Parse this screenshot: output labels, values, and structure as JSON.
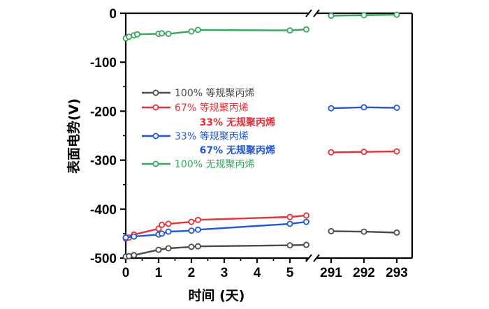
{
  "chart_data": {
    "type": "line",
    "xlabel": "时间 (天)",
    "ylabel": "表面电势(V)",
    "ylim": [
      -500,
      0
    ],
    "yticks": [
      0,
      -100,
      -200,
      -300,
      -400,
      -500
    ],
    "x_segments": [
      {
        "range": [
          0,
          5.6
        ],
        "ticks": [
          0,
          1,
          2,
          3,
          4,
          5
        ]
      },
      {
        "range": [
          290.7,
          293.2
        ],
        "ticks": [
          291,
          292,
          293
        ]
      }
    ],
    "axis_break": true,
    "legend_placement": "center-left",
    "series": [
      {
        "name": "100% 等规聚丙烯",
        "color": "#4a4a4a",
        "points": [
          [
            0,
            -497
          ],
          [
            0.1,
            -496
          ],
          [
            0.25,
            -494
          ],
          [
            1,
            -483
          ],
          [
            1.3,
            -480
          ],
          [
            2,
            -477
          ],
          [
            2.2,
            -476
          ],
          [
            5,
            -474
          ],
          [
            5.5,
            -473
          ],
          [
            291,
            -445
          ],
          [
            292,
            -446
          ],
          [
            293,
            -448
          ]
        ]
      },
      {
        "name": "67% 等规聚丙烯",
        "name_line2": "33% 无规聚丙烯",
        "color": "#e8303a",
        "points": [
          [
            0,
            -460
          ],
          [
            0.1,
            -458
          ],
          [
            0.25,
            -452
          ],
          [
            1,
            -440
          ],
          [
            1.1,
            -432
          ],
          [
            1.3,
            -430
          ],
          [
            2,
            -426
          ],
          [
            2.2,
            -422
          ],
          [
            5,
            -416
          ],
          [
            5.5,
            -413
          ],
          [
            291,
            -284
          ],
          [
            292,
            -283
          ],
          [
            293,
            -282
          ]
        ]
      },
      {
        "name": "33% 等规聚丙烯",
        "name_line2": "67% 无规聚丙烯",
        "color": "#2158d6",
        "points": [
          [
            0,
            -458
          ],
          [
            0.25,
            -456
          ],
          [
            1,
            -452
          ],
          [
            1.1,
            -450
          ],
          [
            1.3,
            -446
          ],
          [
            2,
            -444
          ],
          [
            2.2,
            -442
          ],
          [
            5,
            -430
          ],
          [
            5.5,
            -426
          ],
          [
            291,
            -194
          ],
          [
            292,
            -192
          ],
          [
            293,
            -193
          ]
        ]
      },
      {
        "name": "100% 无规聚丙烯",
        "color": "#35a85e",
        "points": [
          [
            0,
            -51
          ],
          [
            0.1,
            -48
          ],
          [
            0.25,
            -45
          ],
          [
            0.35,
            -43
          ],
          [
            1,
            -42
          ],
          [
            1.1,
            -41
          ],
          [
            1.3,
            -42
          ],
          [
            2,
            -37
          ],
          [
            2.2,
            -34
          ],
          [
            5,
            -35
          ],
          [
            5.5,
            -33
          ],
          [
            291,
            -5
          ],
          [
            292,
            -4
          ],
          [
            293,
            -3
          ]
        ]
      }
    ]
  }
}
